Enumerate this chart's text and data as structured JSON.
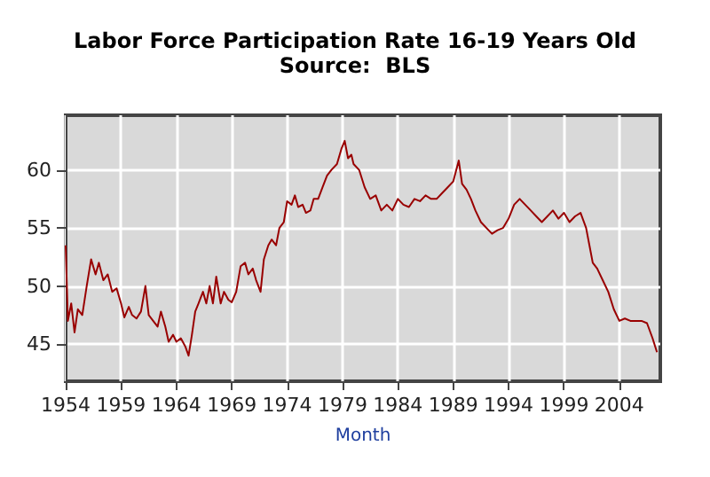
{
  "chart_data": {
    "type": "line",
    "title": "Labor Force Participation Rate 16-19 Years Old",
    "subtitle": "Source:  BLS",
    "xlabel": "Month",
    "x": [
      1954.0,
      1954.2,
      1954.5,
      1954.8,
      1955.1,
      1955.5,
      1955.9,
      1956.3,
      1956.7,
      1957.0,
      1957.4,
      1957.8,
      1958.2,
      1958.6,
      1959.0,
      1959.3,
      1959.7,
      1960.0,
      1960.4,
      1960.8,
      1961.2,
      1961.5,
      1961.9,
      1962.3,
      1962.6,
      1963.0,
      1963.3,
      1963.7,
      1964.0,
      1964.4,
      1964.8,
      1965.1,
      1965.4,
      1965.7,
      1966.0,
      1966.4,
      1966.7,
      1967.0,
      1967.3,
      1967.6,
      1968.0,
      1968.3,
      1968.7,
      1969.0,
      1969.4,
      1969.8,
      1970.2,
      1970.5,
      1970.9,
      1971.2,
      1971.6,
      1971.9,
      1972.3,
      1972.6,
      1973.0,
      1973.3,
      1973.7,
      1974.0,
      1974.4,
      1974.7,
      1975.0,
      1975.4,
      1975.7,
      1976.1,
      1976.4,
      1976.8,
      1977.2,
      1977.6,
      1978.0,
      1978.5,
      1978.9,
      1979.2,
      1979.5,
      1979.8,
      1980.0,
      1980.5,
      1981.0,
      1981.5,
      1982.0,
      1982.5,
      1983.0,
      1983.5,
      1984.0,
      1984.5,
      1985.0,
      1985.5,
      1986.0,
      1986.5,
      1987.0,
      1987.5,
      1988.0,
      1988.5,
      1989.0,
      1989.5,
      1989.8,
      1990.2,
      1990.6,
      1991.0,
      1991.5,
      1992.0,
      1992.5,
      1993.0,
      1993.5,
      1994.0,
      1994.5,
      1995.0,
      1995.5,
      1996.0,
      1996.5,
      1997.0,
      1997.5,
      1998.0,
      1998.5,
      1999.0,
      1999.5,
      2000.0,
      2000.5,
      2001.0,
      2001.3,
      2001.6,
      2002.0,
      2002.5,
      2003.0,
      2003.5,
      2004.0,
      2004.5,
      2005.0,
      2005.5,
      2006.0,
      2006.5,
      2007.0,
      2007.4
    ],
    "series": [
      {
        "color": "#990000",
        "values": [
          53.5,
          47,
          48.5,
          46,
          48,
          47.5,
          50,
          52.3,
          51,
          52,
          50.5,
          51,
          49.5,
          49.8,
          48.5,
          47.3,
          48.2,
          47.5,
          47.2,
          47.8,
          50,
          47.5,
          47,
          46.5,
          47.8,
          46.5,
          45.2,
          45.8,
          45.2,
          45.5,
          44.8,
          44,
          45.8,
          47.8,
          48.5,
          49.5,
          48.5,
          50,
          48.5,
          50.8,
          48.5,
          49.5,
          48.8,
          48.6,
          49.5,
          51.7,
          52,
          51,
          51.5,
          50.5,
          49.5,
          52.3,
          53.5,
          54,
          53.5,
          55,
          55.5,
          57.3,
          57,
          57.8,
          56.8,
          57,
          56.3,
          56.5,
          57.5,
          57.5,
          58.5,
          59.5,
          60,
          60.5,
          61.8,
          62.5,
          61,
          61.3,
          60.5,
          60,
          58.5,
          57.5,
          57.8,
          56.5,
          57,
          56.5,
          57.5,
          57,
          56.8,
          57.5,
          57.3,
          57.8,
          57.5,
          57.5,
          58,
          58.5,
          59,
          60.8,
          58.8,
          58.3,
          57.5,
          56.5,
          55.5,
          55,
          54.5,
          54.8,
          55,
          55.8,
          57,
          57.5,
          57,
          56.5,
          56,
          55.5,
          56,
          56.5,
          55.8,
          56.3,
          55.5,
          56,
          56.3,
          55,
          53.5,
          52,
          51.5,
          50.5,
          49.5,
          48,
          47,
          47.2,
          47,
          47,
          47,
          46.8,
          45.5,
          44.3
        ]
      }
    ],
    "xlim": [
      1954,
      2007.7
    ],
    "xticks": [
      1954,
      1959,
      1964,
      1969,
      1974,
      1979,
      1984,
      1989,
      1994,
      1999,
      2004
    ],
    "ylim": [
      41.8,
      64.7
    ],
    "yticks": [
      45,
      50,
      55,
      60
    ],
    "grid": true
  }
}
